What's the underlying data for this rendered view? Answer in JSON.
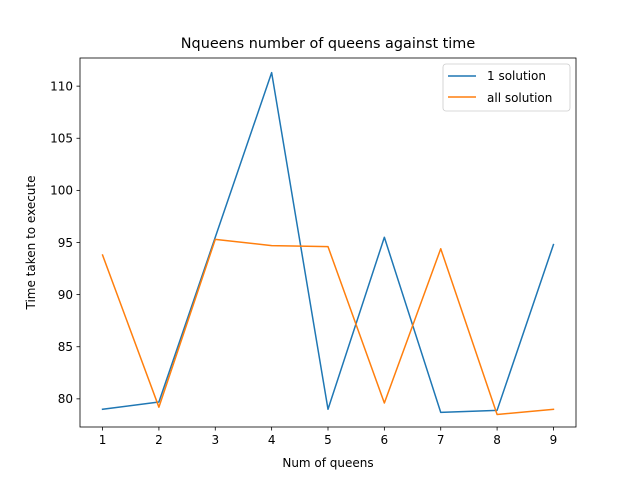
{
  "chart_data": {
    "type": "line",
    "title": "Nqueens number of queens against time",
    "xlabel": "Num of queens",
    "ylabel": "Time taken to execute",
    "x": [
      1,
      2,
      3,
      4,
      5,
      6,
      7,
      8,
      9
    ],
    "xlim": [
      0.6,
      9.4
    ],
    "ylim": [
      77.3,
      112.7
    ],
    "x_ticks": [
      1,
      2,
      3,
      4,
      5,
      6,
      7,
      8,
      9
    ],
    "y_ticks": [
      80,
      85,
      90,
      95,
      100,
      105,
      110
    ],
    "grid": false,
    "legend_position": "top-right",
    "series": [
      {
        "name": "1 solution",
        "color": "#1f77b4",
        "values": [
          79.0,
          79.7,
          95.5,
          111.3,
          79.0,
          95.5,
          78.7,
          78.9,
          94.8
        ]
      },
      {
        "name": "all solution",
        "color": "#ff7f0e",
        "values": [
          93.8,
          79.2,
          95.3,
          94.7,
          94.6,
          79.6,
          94.4,
          78.5,
          79.0
        ]
      }
    ]
  }
}
